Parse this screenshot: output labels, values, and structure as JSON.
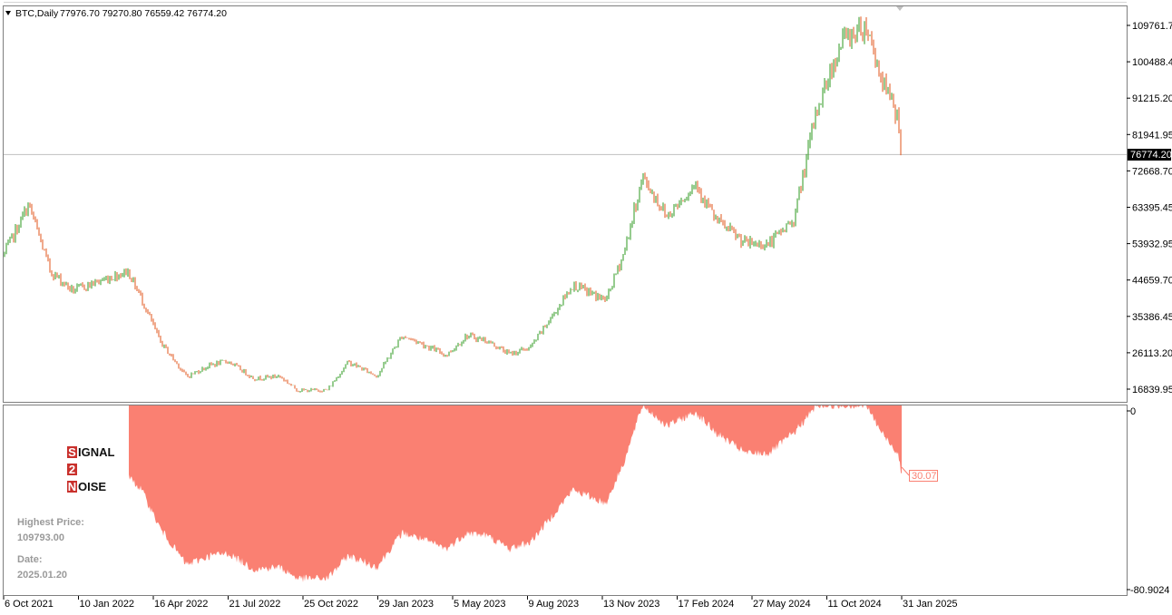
{
  "header": {
    "title": "BTC,Daily",
    "ohlc": "77976.70 79270.80 76559.42 76774.20"
  },
  "price_axis": {
    "labels": [
      "109761.7",
      "100488.4",
      "91215.20",
      "81941.95",
      "72668.70",
      "63395.45",
      "53932.95",
      "44659.70",
      "35386.45",
      "26113.20",
      "16839.95"
    ],
    "current_price_label": "76774.20"
  },
  "indicator_axis": {
    "top_label": "0",
    "bottom_label": "-80.9024",
    "current_value_label": "30.07"
  },
  "time_axis": {
    "labels": [
      "6 Oct 2021",
      "10 Jan 2022",
      "16 Apr 2022",
      "21 Jul 2022",
      "25 Oct 2022",
      "29 Jan 2023",
      "5 May 2023",
      "9 Aug 2023",
      "13 Nov 2023",
      "17 Feb 2024",
      "27 May 2024",
      "11 Oct 2024",
      "31 Jan 2025"
    ]
  },
  "logo": {
    "word1_letter": "S",
    "word1_rest": "IGNAL",
    "word2_letter": "2",
    "word3_letter": "N",
    "word3_rest": "OISE"
  },
  "info": {
    "highest_label": "Highest Price:",
    "highest_value": "109793.00",
    "date_label": "Date:",
    "date_value": "2025.01.20"
  },
  "colors": {
    "bull": "#2e9a1f",
    "bear": "#e2541b",
    "drawdown_fill": "#fa8072",
    "current_line": "#c0c0c0",
    "logo_red": "#c9302c"
  },
  "chart_data": {
    "type": "line",
    "title": "BTC,Daily",
    "x": [
      "2021-10-06",
      "2021-11-10",
      "2021-12-10",
      "2022-01-10",
      "2022-02-10",
      "2022-03-28",
      "2022-04-16",
      "2022-05-12",
      "2022-06-18",
      "2022-07-21",
      "2022-08-15",
      "2022-09-20",
      "2022-10-25",
      "2022-11-20",
      "2022-12-31",
      "2023-01-29",
      "2023-03-10",
      "2023-04-14",
      "2023-05-05",
      "2023-06-15",
      "2023-07-13",
      "2023-08-09",
      "2023-09-11",
      "2023-10-10",
      "2023-11-13",
      "2023-12-08",
      "2024-01-23",
      "2024-02-17",
      "2024-03-14",
      "2024-04-17",
      "2024-05-27",
      "2024-06-24",
      "2024-08-05",
      "2024-09-06",
      "2024-10-11",
      "2024-11-12",
      "2024-12-17",
      "2025-01-20",
      "2025-02-10",
      "2025-03-05",
      "2025-03-10"
    ],
    "series": [
      {
        "values": [
          51000,
          64000,
          47000,
          42000,
          44000,
          47000,
          40000,
          29000,
          20000,
          23000,
          24000,
          19500,
          20200,
          16500,
          16600,
          23800,
          20200,
          30500,
          29000,
          25500,
          30500,
          29300,
          25800,
          27500,
          36500,
          43500,
          39500,
          51600,
          71000,
          61000,
          69500,
          60000,
          54000,
          53900,
          60300,
          88500,
          106000,
          109793,
          96000,
          86000,
          76774
        ]
      },
      {
        "values": [
          -20.6,
          -1,
          -27,
          -38,
          -35,
          -31,
          -37,
          -54,
          -70,
          -66,
          -65,
          -72,
          -71,
          -76,
          -76,
          -66,
          -71,
          -56,
          -58,
          -63,
          -56,
          -57,
          -63,
          -60,
          -47,
          -37,
          -43,
          -25,
          0,
          -9,
          -3,
          -12,
          -21,
          -21,
          -12,
          0,
          0,
          0,
          -12,
          -21,
          -30.07
        ]
      }
    ],
    "ylim": [
      16839.95,
      109761.7
    ],
    "y2lim": [
      -80.9024,
      0
    ]
  }
}
